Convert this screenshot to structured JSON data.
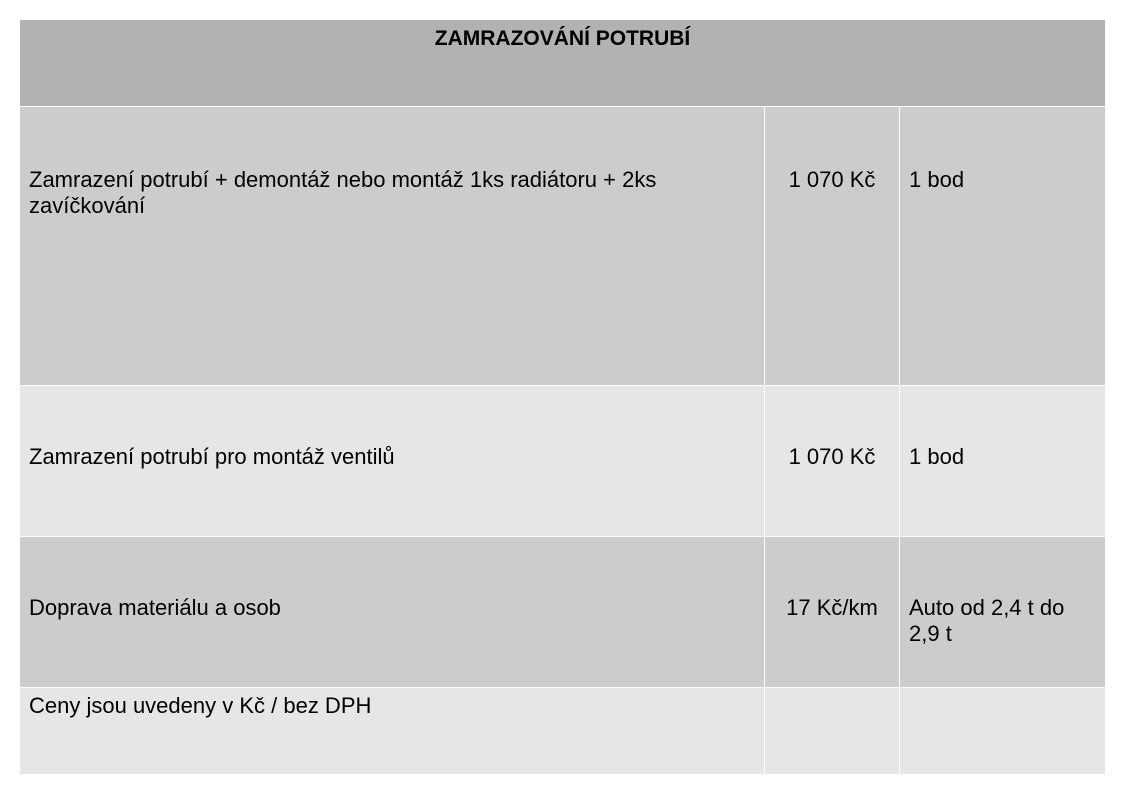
{
  "title": "ZAMRAZOVÁNÍ POTRUBÍ",
  "rows": [
    {
      "description": "Zamrazení potrubí + demontáž nebo montáž 1ks radiátoru + 2ks zavíčkování",
      "price": "1 070 Kč",
      "unit": "1 bod"
    },
    {
      "description": "Zamrazení potrubí pro montáž ventilů",
      "price": "1 070 Kč",
      "unit": "1 bod"
    },
    {
      "description": "Doprava materiálu a osob",
      "price": "17 Kč/km",
      "unit": "Auto od 2,4 t do 2,9 t"
    },
    {
      "description": "Ceny jsou uvedeny v Kč / bez DPH",
      "price": "",
      "unit": ""
    }
  ],
  "colors": {
    "header": "#b2b2b2",
    "row_dark": "#cccccc",
    "row_light": "#e6e6e6"
  }
}
